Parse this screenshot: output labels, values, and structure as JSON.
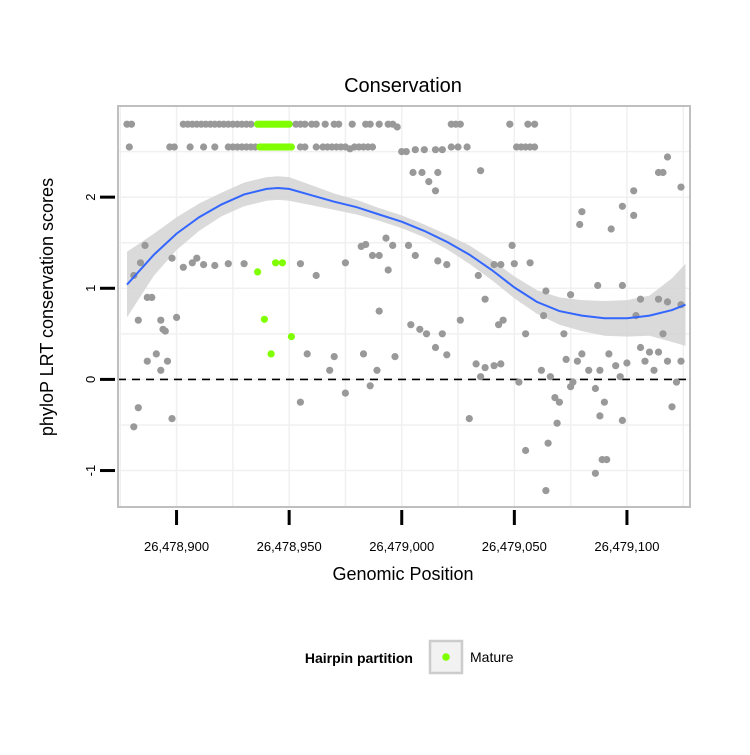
{
  "chart_data": {
    "type": "scatter",
    "title": "Conservation",
    "xlabel": "Genomic Position",
    "ylabel": "phyloP LRT conservation scores",
    "xlim": [
      26478874,
      26479128
    ],
    "ylim": [
      -1.4,
      3.0
    ],
    "x_ticks": [
      26478900,
      26478950,
      26479000,
      26479050,
      26479100
    ],
    "x_tick_labels": [
      "26,478,900",
      "26,478,950",
      "26,479,000",
      "26,479,050",
      "26,479,100"
    ],
    "y_ticks": [
      -1,
      0,
      1,
      2
    ],
    "y_tick_labels": [
      "-1",
      "0",
      "1",
      "2"
    ],
    "reference_line_y": 0,
    "grid": true,
    "colors": {
      "other": "#999999",
      "mature": "#7fff00",
      "smooth_line": "#3366ff",
      "ci_band": "#d3d3d3",
      "panel_border": "#bfbfbf",
      "grid": "#f0f0f0"
    },
    "legend": {
      "title": "Hairpin partition",
      "placement": "bottom",
      "entries": [
        {
          "label": "Mature",
          "color": "#7fff00"
        }
      ]
    },
    "series": [
      {
        "name": "Mature",
        "points": [
          [
            26478936,
            2.8
          ],
          [
            26478937,
            2.8
          ],
          [
            26478938,
            2.8
          ],
          [
            26478939,
            2.8
          ],
          [
            26478940,
            2.8
          ],
          [
            26478941,
            2.8
          ],
          [
            26478942,
            2.8
          ],
          [
            26478943,
            2.8
          ],
          [
            26478944,
            2.8
          ],
          [
            26478945,
            2.8
          ],
          [
            26478946,
            2.8
          ],
          [
            26478947,
            2.8
          ],
          [
            26478948,
            2.8
          ],
          [
            26478949,
            2.8
          ],
          [
            26478950,
            2.8
          ],
          [
            26478937,
            2.55
          ],
          [
            26478938,
            2.55
          ],
          [
            26478939,
            2.55
          ],
          [
            26478940,
            2.55
          ],
          [
            26478941,
            2.55
          ],
          [
            26478942,
            2.55
          ],
          [
            26478943,
            2.55
          ],
          [
            26478944,
            2.55
          ],
          [
            26478945,
            2.55
          ],
          [
            26478946,
            2.55
          ],
          [
            26478947,
            2.55
          ],
          [
            26478948,
            2.55
          ],
          [
            26478949,
            2.55
          ],
          [
            26478950,
            2.55
          ],
          [
            26478951,
            2.55
          ],
          [
            26478936,
            1.18
          ],
          [
            26478944,
            1.28
          ],
          [
            26478947,
            1.28
          ],
          [
            26478939,
            0.66
          ],
          [
            26478942,
            0.28
          ],
          [
            26478951,
            0.47
          ]
        ]
      },
      {
        "name": "Other",
        "points": [
          [
            26478878,
            2.8
          ],
          [
            26478880,
            2.8
          ],
          [
            26478903,
            2.8
          ],
          [
            26478905,
            2.8
          ],
          [
            26478907,
            2.8
          ],
          [
            26478909,
            2.8
          ],
          [
            26478911,
            2.8
          ],
          [
            26478913,
            2.8
          ],
          [
            26478915,
            2.8
          ],
          [
            26478917,
            2.8
          ],
          [
            26478919,
            2.8
          ],
          [
            26478921,
            2.8
          ],
          [
            26478923,
            2.8
          ],
          [
            26478925,
            2.8
          ],
          [
            26478927,
            2.8
          ],
          [
            26478929,
            2.8
          ],
          [
            26478931,
            2.8
          ],
          [
            26478933,
            2.8
          ],
          [
            26478953,
            2.8
          ],
          [
            26478955,
            2.8
          ],
          [
            26478957,
            2.8
          ],
          [
            26478960,
            2.8
          ],
          [
            26478962,
            2.8
          ],
          [
            26478966,
            2.8
          ],
          [
            26478970,
            2.8
          ],
          [
            26478972,
            2.8
          ],
          [
            26478978,
            2.8
          ],
          [
            26478984,
            2.8
          ],
          [
            26478986,
            2.8
          ],
          [
            26478990,
            2.8
          ],
          [
            26478994,
            2.8
          ],
          [
            26478996,
            2.8
          ],
          [
            26478998,
            2.77
          ],
          [
            26479022,
            2.8
          ],
          [
            26479024,
            2.8
          ],
          [
            26479026,
            2.8
          ],
          [
            26479048,
            2.8
          ],
          [
            26479056,
            2.8
          ],
          [
            26479059,
            2.8
          ],
          [
            26478879,
            2.55
          ],
          [
            26478897,
            2.55
          ],
          [
            26478899,
            2.55
          ],
          [
            26478906,
            2.55
          ],
          [
            26478912,
            2.55
          ],
          [
            26478917,
            2.55
          ],
          [
            26478923,
            2.55
          ],
          [
            26478925,
            2.55
          ],
          [
            26478927,
            2.55
          ],
          [
            26478929,
            2.55
          ],
          [
            26478931,
            2.55
          ],
          [
            26478933,
            2.55
          ],
          [
            26478935,
            2.55
          ],
          [
            26478955,
            2.55
          ],
          [
            26478957,
            2.55
          ],
          [
            26478962,
            2.55
          ],
          [
            26478965,
            2.55
          ],
          [
            26478967,
            2.55
          ],
          [
            26478969,
            2.55
          ],
          [
            26478971,
            2.55
          ],
          [
            26478973,
            2.55
          ],
          [
            26478975,
            2.55
          ],
          [
            26478977,
            2.53
          ],
          [
            26478979,
            2.55
          ],
          [
            26478981,
            2.55
          ],
          [
            26478983,
            2.55
          ],
          [
            26478985,
            2.55
          ],
          [
            26478987,
            2.55
          ],
          [
            26479000,
            2.5
          ],
          [
            26479002,
            2.5
          ],
          [
            26479006,
            2.52
          ],
          [
            26479010,
            2.52
          ],
          [
            26479015,
            2.52
          ],
          [
            26479018,
            2.52
          ],
          [
            26479022,
            2.55
          ],
          [
            26479025,
            2.55
          ],
          [
            26479029,
            2.55
          ],
          [
            26479051,
            2.55
          ],
          [
            26479053,
            2.55
          ],
          [
            26479055,
            2.55
          ],
          [
            26479057,
            2.55
          ],
          [
            26479059,
            2.55
          ],
          [
            26479005,
            2.27
          ],
          [
            26479009,
            2.27
          ],
          [
            26479012,
            2.17
          ],
          [
            26479015,
            2.07
          ],
          [
            26479016,
            2.27
          ],
          [
            26479035,
            2.29
          ],
          [
            26479103,
            2.07
          ],
          [
            26479114,
            2.27
          ],
          [
            26479116,
            2.27
          ],
          [
            26479118,
            2.44
          ],
          [
            26479124,
            2.11
          ],
          [
            26479103,
            1.8
          ],
          [
            26479080,
            1.84
          ],
          [
            26479079,
            1.7
          ],
          [
            26479093,
            1.65
          ],
          [
            26479098,
            1.9
          ],
          [
            26478881,
            1.14
          ],
          [
            26478884,
            1.28
          ],
          [
            26478886,
            1.47
          ],
          [
            26478887,
            0.9
          ],
          [
            26478889,
            0.9
          ],
          [
            26478891,
            0.28
          ],
          [
            26478893,
            0.65
          ],
          [
            26478895,
            0.53
          ],
          [
            26478898,
            1.33
          ],
          [
            26478900,
            0.68
          ],
          [
            26478903,
            1.23
          ],
          [
            26478907,
            1.28
          ],
          [
            26478909,
            1.33
          ],
          [
            26478912,
            1.26
          ],
          [
            26478917,
            1.25
          ],
          [
            26478923,
            1.27
          ],
          [
            26478930,
            1.27
          ],
          [
            26478955,
            1.27
          ],
          [
            26478962,
            1.14
          ],
          [
            26478975,
            1.28
          ],
          [
            26478982,
            1.46
          ],
          [
            26478984,
            1.48
          ],
          [
            26478987,
            1.36
          ],
          [
            26478990,
            1.36
          ],
          [
            26478993,
            1.55
          ],
          [
            26478996,
            1.47
          ],
          [
            26479003,
            1.47
          ],
          [
            26479006,
            1.36
          ],
          [
            26479016,
            1.3
          ],
          [
            26479020,
            1.26
          ],
          [
            26479034,
            1.14
          ],
          [
            26479037,
            0.88
          ],
          [
            26479041,
            1.26
          ],
          [
            26479044,
            1.26
          ],
          [
            26479049,
            1.47
          ],
          [
            26479050,
            1.27
          ],
          [
            26479057,
            1.28
          ],
          [
            26479064,
            0.97
          ],
          [
            26479075,
            0.93
          ],
          [
            26479087,
            1.03
          ],
          [
            26479098,
            1.03
          ],
          [
            26479106,
            0.88
          ],
          [
            26479114,
            0.88
          ],
          [
            26479118,
            0.85
          ],
          [
            26479124,
            0.82
          ],
          [
            26478883,
            0.65
          ],
          [
            26478887,
            0.2
          ],
          [
            26478893,
            0.1
          ],
          [
            26478896,
            0.2
          ],
          [
            26478894,
            0.55
          ],
          [
            26478883,
            -0.31
          ],
          [
            26478881,
            -0.52
          ],
          [
            26478898,
            -0.43
          ],
          [
            26478955,
            -0.25
          ],
          [
            26478958,
            0.28
          ],
          [
            26478968,
            0.1
          ],
          [
            26478970,
            0.25
          ],
          [
            26478975,
            -0.15
          ],
          [
            26478983,
            0.28
          ],
          [
            26478986,
            -0.07
          ],
          [
            26478989,
            0.1
          ],
          [
            26478990,
            0.75
          ],
          [
            26478994,
            1.2
          ],
          [
            26478997,
            0.25
          ],
          [
            26479004,
            0.6
          ],
          [
            26479008,
            0.55
          ],
          [
            26479011,
            0.5
          ],
          [
            26479015,
            0.35
          ],
          [
            26479018,
            0.5
          ],
          [
            26479020,
            0.27
          ],
          [
            26479026,
            0.65
          ],
          [
            26479030,
            -0.43
          ],
          [
            26479033,
            0.17
          ],
          [
            26479035,
            0.03
          ],
          [
            26479037,
            0.13
          ],
          [
            26479041,
            0.15
          ],
          [
            26479043,
            0.6
          ],
          [
            26479044,
            0.17
          ],
          [
            26479045,
            0.65
          ],
          [
            26479052,
            -0.03
          ],
          [
            26479055,
            0.5
          ],
          [
            26479062,
            0.1
          ],
          [
            26479063,
            0.7
          ],
          [
            26479066,
            0.03
          ],
          [
            26479068,
            -0.2
          ],
          [
            26479070,
            -0.25
          ],
          [
            26479072,
            0.5
          ],
          [
            26479073,
            0.22
          ],
          [
            26479075,
            -0.08
          ],
          [
            26479076,
            -0.03
          ],
          [
            26479078,
            0.2
          ],
          [
            26479080,
            0.28
          ],
          [
            26479083,
            0.1
          ],
          [
            26479086,
            -0.1
          ],
          [
            26479088,
            0.1
          ],
          [
            26479090,
            -0.25
          ],
          [
            26479092,
            0.28
          ],
          [
            26479095,
            0.15
          ],
          [
            26479097,
            0.03
          ],
          [
            26479100,
            0.18
          ],
          [
            26479104,
            0.7
          ],
          [
            26479106,
            0.35
          ],
          [
            26479108,
            0.2
          ],
          [
            26479110,
            0.3
          ],
          [
            26479112,
            0.1
          ],
          [
            26479114,
            0.3
          ],
          [
            26479116,
            0.5
          ],
          [
            26479118,
            0.2
          ],
          [
            26479120,
            -0.3
          ],
          [
            26479122,
            -0.03
          ],
          [
            26479124,
            0.2
          ],
          [
            26479055,
            -0.78
          ],
          [
            26479065,
            -0.7
          ],
          [
            26479069,
            -0.48
          ],
          [
            26479086,
            -1.03
          ],
          [
            26479089,
            -0.88
          ],
          [
            26479091,
            -0.88
          ],
          [
            26479088,
            -0.4
          ],
          [
            26479098,
            -0.45
          ],
          [
            26479064,
            -1.22
          ]
        ]
      }
    ],
    "smooth": {
      "x": [
        26478878,
        26478890,
        26478900,
        26478910,
        26478920,
        26478930,
        26478940,
        26478945,
        26478950,
        26478960,
        26478970,
        26478980,
        26478990,
        26479000,
        26479010,
        26479020,
        26479030,
        26479040,
        26479050,
        26479060,
        26479070,
        26479080,
        26479090,
        26479100,
        26479110,
        26479120,
        26479126
      ],
      "y": [
        1.04,
        1.37,
        1.6,
        1.78,
        1.92,
        2.03,
        2.09,
        2.1,
        2.09,
        2.02,
        1.95,
        1.89,
        1.81,
        1.73,
        1.63,
        1.51,
        1.37,
        1.2,
        1.01,
        0.85,
        0.75,
        0.7,
        0.67,
        0.67,
        0.7,
        0.76,
        0.82
      ],
      "lower": [
        0.68,
        1.14,
        1.42,
        1.63,
        1.79,
        1.9,
        1.96,
        1.97,
        1.96,
        1.91,
        1.86,
        1.81,
        1.74,
        1.66,
        1.56,
        1.43,
        1.27,
        1.09,
        0.89,
        0.72,
        0.6,
        0.53,
        0.48,
        0.47,
        0.48,
        0.41,
        0.37
      ],
      "upper": [
        1.4,
        1.6,
        1.78,
        1.93,
        2.05,
        2.16,
        2.22,
        2.23,
        2.22,
        2.13,
        2.04,
        1.97,
        1.88,
        1.8,
        1.7,
        1.59,
        1.47,
        1.31,
        1.13,
        0.98,
        0.9,
        0.87,
        0.86,
        0.87,
        0.92,
        1.11,
        1.27
      ]
    }
  }
}
